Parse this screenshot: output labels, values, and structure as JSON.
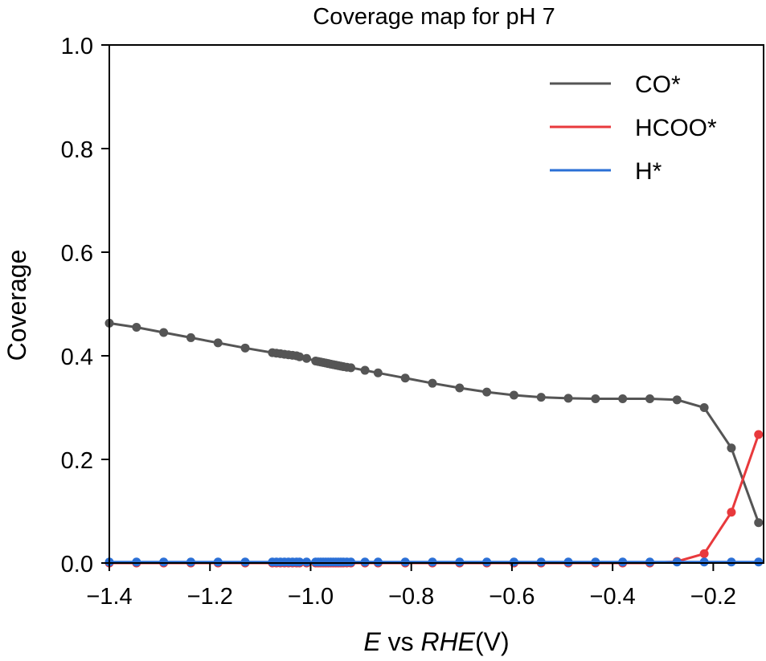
{
  "chart_data": {
    "type": "line",
    "title": "Coverage map for pH 7",
    "xlabel": {
      "italic_a": "E",
      "plain": " vs ",
      "italic_b": "RHE",
      "unit": "(V)"
    },
    "ylabel": "Coverage",
    "xlim": [
      -1.4,
      -0.1
    ],
    "ylim": [
      0.0,
      1.0
    ],
    "xticks": [
      -1.4,
      -1.2,
      -1.0,
      -0.8,
      -0.6,
      -0.4,
      -0.2
    ],
    "xtick_labels": [
      "−1.4",
      "−1.2",
      "−1.0",
      "−0.8",
      "−0.6",
      "−0.4",
      "−0.2"
    ],
    "yticks": [
      0.0,
      0.2,
      0.4,
      0.6,
      0.8,
      1.0
    ],
    "ytick_labels": [
      "0.0",
      "0.2",
      "0.4",
      "0.6",
      "0.8",
      "1.0"
    ],
    "grid": false,
    "legend_position": "top-right",
    "x": [
      -1.4,
      -1.346,
      -1.292,
      -1.238,
      -1.184,
      -1.13,
      -1.076,
      -1.068,
      -1.06,
      -1.052,
      -1.044,
      -1.036,
      -1.028,
      -1.022,
      -1.008,
      -0.99,
      -0.985,
      -0.98,
      -0.975,
      -0.97,
      -0.965,
      -0.96,
      -0.955,
      -0.95,
      -0.945,
      -0.94,
      -0.935,
      -0.928,
      -0.92,
      -0.892,
      -0.866,
      -0.812,
      -0.758,
      -0.704,
      -0.65,
      -0.596,
      -0.542,
      -0.488,
      -0.434,
      -0.38,
      -0.326,
      -0.272,
      -0.218,
      -0.164,
      -0.11
    ],
    "series": [
      {
        "name": "CO*",
        "color": "#555555",
        "values": [
          0.463,
          0.455,
          0.445,
          0.435,
          0.425,
          0.415,
          0.406,
          0.405,
          0.404,
          0.403,
          0.402,
          0.401,
          0.4,
          0.398,
          0.395,
          0.39,
          0.389,
          0.388,
          0.387,
          0.386,
          0.385,
          0.384,
          0.383,
          0.382,
          0.381,
          0.38,
          0.379,
          0.378,
          0.377,
          0.372,
          0.367,
          0.357,
          0.347,
          0.338,
          0.33,
          0.324,
          0.32,
          0.318,
          0.317,
          0.317,
          0.317,
          0.315,
          0.3,
          0.222,
          0.078
        ]
      },
      {
        "name": "HCOO*",
        "color": "#e8393c",
        "values": [
          0,
          0,
          0,
          0,
          0,
          0,
          0,
          0,
          0,
          0,
          0,
          0,
          0,
          0,
          0,
          0,
          0,
          0,
          0,
          0,
          0,
          0,
          0,
          0,
          0,
          0,
          0,
          0,
          0,
          0,
          0,
          0,
          0,
          0,
          0,
          0,
          0,
          0,
          0,
          0,
          0,
          0.003,
          0.018,
          0.098,
          0.248
        ]
      },
      {
        "name": "H*",
        "color": "#2a6fd6",
        "values": [
          0.002,
          0.002,
          0.002,
          0.002,
          0.002,
          0.002,
          0.002,
          0.002,
          0.002,
          0.002,
          0.002,
          0.002,
          0.002,
          0.002,
          0.002,
          0.002,
          0.002,
          0.002,
          0.002,
          0.002,
          0.002,
          0.002,
          0.002,
          0.002,
          0.002,
          0.002,
          0.002,
          0.002,
          0.002,
          0.002,
          0.002,
          0.002,
          0.002,
          0.002,
          0.002,
          0.002,
          0.002,
          0.002,
          0.002,
          0.002,
          0.002,
          0.002,
          0.002,
          0.002,
          0.002
        ]
      }
    ]
  }
}
